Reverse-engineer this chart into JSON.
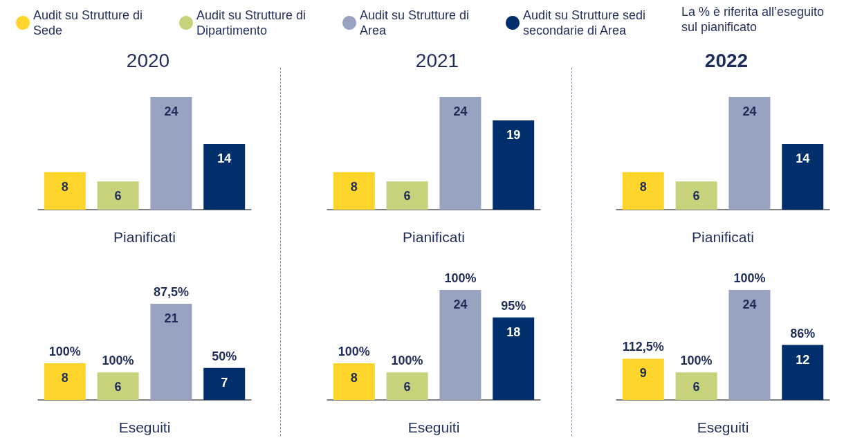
{
  "chart_data": [
    {
      "type": "bar",
      "title": "2020",
      "xlabel": "Pianificati",
      "legend": "top",
      "data_labels": true,
      "categories": [
        null
      ],
      "series": [
        {
          "name": "Audit su Strutture di Sede",
          "color": "#fdd52b",
          "values": [
            8
          ]
        },
        {
          "name": "Audit su Strutture di Dipartimento",
          "color": "#c8d27a",
          "values": [
            6
          ]
        },
        {
          "name": "Audit su Strutture di Area",
          "color": "#97a3c0",
          "values": [
            24
          ]
        },
        {
          "name": "Audit su Strutture sedi secondarie di Area",
          "color": "#002f6c",
          "values": [
            14
          ]
        }
      ],
      "annotations": [
        "La % è riferita all’eseguito sul pianificato"
      ]
    },
    {
      "type": "bar",
      "title": "2021",
      "xlabel": "Pianificati",
      "data_labels": true,
      "categories": [
        null
      ],
      "series": [
        {
          "color": "#fdd52b",
          "values": [
            8
          ]
        },
        {
          "color": "#c8d27a",
          "values": [
            6
          ]
        },
        {
          "color": "#97a3c0",
          "values": [
            24
          ]
        },
        {
          "color": "#002f6c",
          "values": [
            19
          ]
        }
      ]
    },
    {
      "type": "bar",
      "title": "2022",
      "xlabel": "Pianificati",
      "data_labels": true,
      "categories": [
        null
      ],
      "series": [
        {
          "color": "#fdd52b",
          "values": [
            8
          ]
        },
        {
          "color": "#c8d27a",
          "values": [
            6
          ]
        },
        {
          "color": "#97a3c0",
          "values": [
            24
          ]
        },
        {
          "color": "#002f6c",
          "values": [
            14
          ]
        }
      ]
    },
    {
      "type": "bar",
      "xlabel": "Eseguiti",
      "data_labels": true,
      "categories": [
        null
      ],
      "series": [
        {
          "color": "#fdd52b",
          "values": [
            8
          ]
        },
        {
          "color": "#c8d27a",
          "values": [
            6
          ]
        },
        {
          "color": "#97a3c0",
          "values": [
            21
          ]
        },
        {
          "color": "#002f6c",
          "values": [
            7
          ]
        }
      ],
      "annotations": [
        "100%",
        "100%",
        "87,5%",
        "50%"
      ]
    },
    {
      "type": "bar",
      "xlabel": "Eseguiti",
      "data_labels": true,
      "categories": [
        null
      ],
      "series": [
        {
          "color": "#fdd52b",
          "values": [
            8
          ]
        },
        {
          "color": "#c8d27a",
          "values": [
            6
          ]
        },
        {
          "color": "#97a3c0",
          "values": [
            24
          ]
        },
        {
          "color": "#002f6c",
          "values": [
            18
          ]
        }
      ],
      "annotations": [
        "100%",
        "100%",
        "100%",
        "95%"
      ]
    },
    {
      "type": "bar",
      "xlabel": "Eseguiti",
      "data_labels": true,
      "categories": [
        null
      ],
      "series": [
        {
          "color": "#fdd52b",
          "values": [
            9
          ]
        },
        {
          "color": "#c8d27a",
          "values": [
            6
          ]
        },
        {
          "color": "#97a3c0",
          "values": [
            24
          ]
        },
        {
          "color": "#002f6c",
          "values": [
            12
          ]
        }
      ],
      "annotations": [
        "112,5%",
        "100%",
        "100%",
        "86%"
      ]
    }
  ]
}
